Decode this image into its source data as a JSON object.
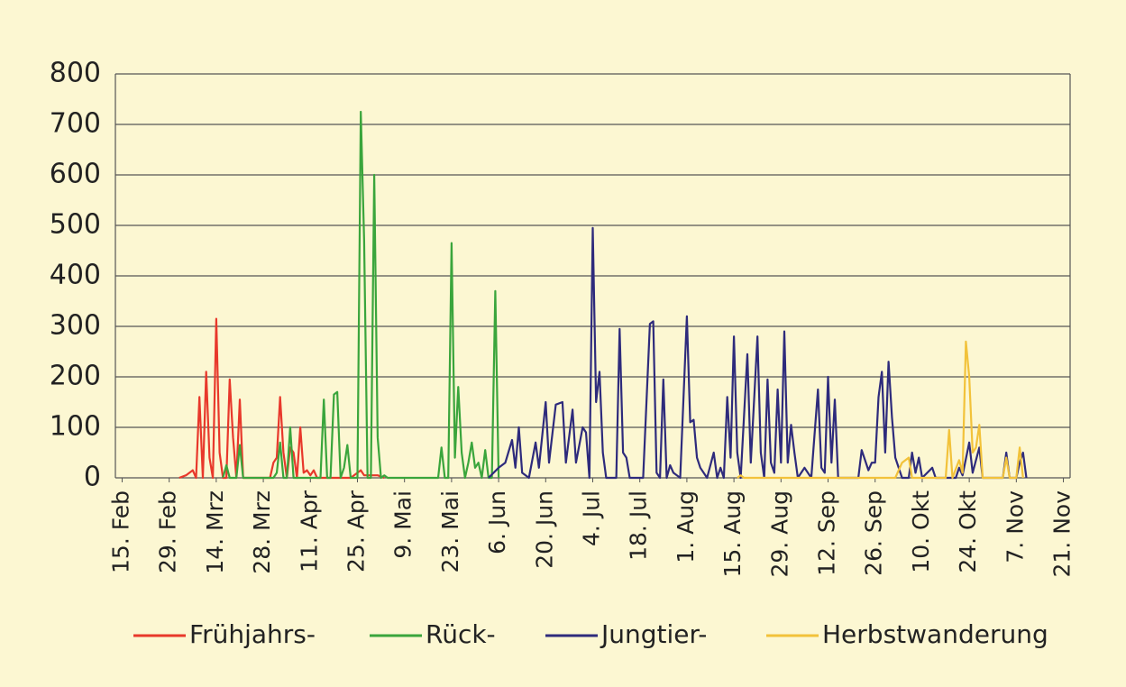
{
  "chart_data": {
    "type": "line",
    "xlim": [
      -2,
      282
    ],
    "xticks": [
      {
        "value": 0,
        "label": "15. Feb"
      },
      {
        "value": 14,
        "label": "29. Feb"
      },
      {
        "value": 28,
        "label": "14. Mrz"
      },
      {
        "value": 42,
        "label": "28. Mrz"
      },
      {
        "value": 56,
        "label": "11. Apr"
      },
      {
        "value": 70,
        "label": "25. Apr"
      },
      {
        "value": 84,
        "label": "9. Mai"
      },
      {
        "value": 98,
        "label": "23. Mai"
      },
      {
        "value": 112,
        "label": "6. Jun"
      },
      {
        "value": 126,
        "label": "20. Jun"
      },
      {
        "value": 140,
        "label": "4. Jul"
      },
      {
        "value": 154,
        "label": "18. Jul"
      },
      {
        "value": 168,
        "label": "1. Aug"
      },
      {
        "value": 182,
        "label": "15. Aug"
      },
      {
        "value": 196,
        "label": "29. Aug"
      },
      {
        "value": 210,
        "label": "12. Sep"
      },
      {
        "value": 224,
        "label": "26. Sep"
      },
      {
        "value": 238,
        "label": "10. Okt"
      },
      {
        "value": 252,
        "label": "24. Okt"
      },
      {
        "value": 266,
        "label": "7. Nov"
      },
      {
        "value": 280,
        "label": "21. Nov"
      }
    ],
    "ylim": [
      0,
      800
    ],
    "yticks": [
      0,
      100,
      200,
      300,
      400,
      500,
      600,
      700,
      800
    ],
    "grid": true,
    "legend": "bottom",
    "series": [
      {
        "name": "Frühjahrs-",
        "color": "#e8382b",
        "x": [
          17,
          19,
          21,
          22,
          23,
          24,
          25,
          26,
          27,
          28,
          29,
          30,
          31,
          32,
          33,
          34,
          35,
          36,
          44,
          45,
          46,
          47,
          48,
          49,
          50,
          51,
          52,
          53,
          54,
          55,
          56,
          57,
          58,
          68,
          70,
          71,
          72,
          74,
          76,
          78
        ],
        "values": [
          0,
          5,
          15,
          0,
          160,
          0,
          210,
          40,
          0,
          315,
          50,
          0,
          0,
          195,
          80,
          0,
          155,
          0,
          0,
          30,
          40,
          160,
          50,
          0,
          60,
          50,
          0,
          100,
          10,
          15,
          5,
          15,
          0,
          0,
          10,
          15,
          5,
          5,
          5,
          0
        ]
      },
      {
        "name": "Rück-",
        "color": "#3aa53c",
        "x": [
          30,
          31,
          32,
          34,
          35,
          36,
          45,
          46,
          47,
          48,
          49,
          50,
          51,
          59,
          60,
          61,
          62,
          63,
          64,
          65,
          66,
          67,
          68,
          70,
          71,
          72,
          73,
          74,
          75,
          76,
          77,
          78,
          79,
          94,
          95,
          96,
          97,
          98,
          99,
          100,
          101,
          102,
          103,
          104,
          105,
          106,
          107,
          108,
          109,
          110,
          111,
          112
        ],
        "values": [
          0,
          25,
          0,
          0,
          65,
          0,
          0,
          10,
          70,
          0,
          0,
          100,
          0,
          0,
          155,
          0,
          0,
          165,
          170,
          0,
          20,
          65,
          0,
          0,
          725,
          470,
          0,
          0,
          600,
          80,
          0,
          5,
          0,
          0,
          60,
          0,
          0,
          465,
          40,
          180,
          50,
          0,
          30,
          70,
          20,
          30,
          0,
          55,
          0,
          0,
          370,
          0
        ]
      },
      {
        "name": "Jungtier-",
        "color": "#2e2b7c",
        "x": [
          109,
          112,
          114,
          116,
          117,
          118,
          119,
          121,
          123,
          124,
          126,
          127,
          129,
          131,
          132,
          134,
          135,
          137,
          138,
          139,
          140,
          141,
          142,
          143,
          144,
          147,
          148,
          149,
          150,
          151,
          155,
          157,
          158,
          159,
          160,
          161,
          162,
          163,
          164,
          166,
          168,
          169,
          170,
          171,
          172,
          174,
          176,
          177,
          178,
          179,
          180,
          181,
          182,
          183,
          184,
          186,
          187,
          189,
          190,
          191,
          192,
          193,
          194,
          195,
          196,
          197,
          198,
          199,
          200,
          201,
          203,
          204,
          205,
          207,
          208,
          209,
          210,
          211,
          212,
          213,
          219,
          220,
          222,
          223,
          224,
          225,
          226,
          227,
          228,
          229,
          230,
          232,
          234,
          235,
          236,
          237,
          238,
          241,
          242,
          248,
          249,
          250,
          252,
          253,
          255,
          256,
          262,
          263,
          264,
          266,
          267,
          268,
          269
        ],
        "values": [
          0,
          20,
          30,
          75,
          20,
          100,
          10,
          0,
          70,
          20,
          150,
          30,
          145,
          150,
          30,
          135,
          30,
          100,
          90,
          0,
          495,
          150,
          210,
          50,
          0,
          0,
          295,
          50,
          40,
          0,
          0,
          305,
          310,
          10,
          0,
          195,
          0,
          25,
          10,
          0,
          320,
          110,
          115,
          40,
          20,
          0,
          50,
          0,
          20,
          0,
          160,
          40,
          280,
          50,
          0,
          245,
          30,
          280,
          50,
          0,
          195,
          30,
          10,
          175,
          30,
          290,
          30,
          105,
          50,
          0,
          20,
          10,
          0,
          175,
          20,
          10,
          200,
          30,
          155,
          0,
          0,
          55,
          15,
          30,
          30,
          160,
          210,
          50,
          230,
          120,
          40,
          0,
          0,
          50,
          10,
          40,
          0,
          20,
          0,
          0,
          20,
          5,
          70,
          10,
          60,
          0,
          0,
          50,
          0,
          0,
          30,
          50,
          0
        ]
      },
      {
        "name": "Herbstwanderung",
        "color": "#f2c23a",
        "x": [
          183,
          184,
          185,
          230,
          232,
          234,
          235,
          245,
          246,
          247,
          249,
          250,
          251,
          252,
          253,
          254,
          255,
          256,
          262,
          263,
          264,
          266,
          267,
          268
        ],
        "values": [
          0,
          5,
          0,
          0,
          30,
          40,
          0,
          0,
          95,
          0,
          35,
          10,
          270,
          200,
          50,
          60,
          105,
          0,
          0,
          40,
          0,
          0,
          60,
          0
        ]
      }
    ]
  }
}
